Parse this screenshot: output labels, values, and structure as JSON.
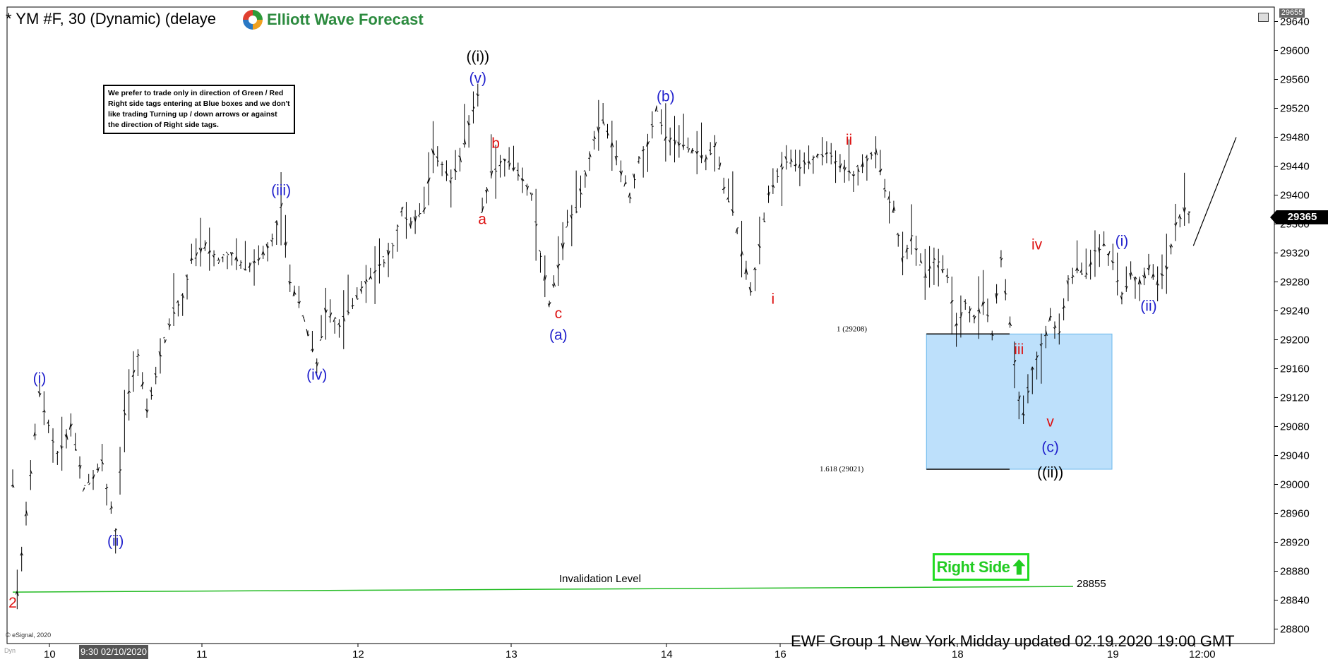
{
  "header": {
    "title": "* YM #F, 30 (Dynamic) (delaye",
    "logo_text": "Elliott Wave Forecast"
  },
  "note": {
    "text": "We prefer to trade only in direction of Green / Red Right side tags entering at Blue boxes and we don't like trading Turning up / down arrows or against the direction of Right side tags."
  },
  "right_side_tag": {
    "label": "Right Side"
  },
  "footer": {
    "text": "EWF Group 1 New York Midday  updated 02.19.2020 19:00 GMT",
    "copyright": "© eSignal, 2020",
    "dyn_label": "Dyn",
    "time_label": "9:30 02/10/2020"
  },
  "price_tag": {
    "current": "29365",
    "top": "29655"
  },
  "chart_data": {
    "type": "bar",
    "ylim": [
      28780,
      29660
    ],
    "y_ticks": [
      28800,
      28840,
      28880,
      28920,
      28960,
      29000,
      29040,
      29080,
      29120,
      29160,
      29200,
      29240,
      29280,
      29320,
      29360,
      29400,
      29440,
      29480,
      29520,
      29560,
      29600,
      29640
    ],
    "x_ticks": [
      "10",
      "11",
      "12",
      "13",
      "14",
      "16",
      "18",
      "19",
      "12:00"
    ],
    "colors": {
      "wave_blue": "#1f1fcc",
      "wave_red": "#dd1111",
      "wave_black": "#000000",
      "box": "#bde0fb",
      "box_border": "#6ab8ec",
      "invalidation": "#22bb22"
    },
    "path": [
      [
        0,
        29000
      ],
      [
        1,
        28850
      ],
      [
        3,
        28960
      ],
      [
        6,
        29125
      ],
      [
        10,
        29040
      ],
      [
        13,
        29080
      ],
      [
        16,
        28995
      ],
      [
        20,
        29030
      ],
      [
        23,
        28935
      ],
      [
        25,
        29100
      ],
      [
        28,
        29180
      ],
      [
        30,
        29100
      ],
      [
        33,
        29180
      ],
      [
        36,
        29240
      ],
      [
        38,
        29260
      ],
      [
        40,
        29310
      ],
      [
        43,
        29330
      ],
      [
        46,
        29310
      ],
      [
        49,
        29320
      ],
      [
        52,
        29300
      ],
      [
        55,
        29310
      ],
      [
        58,
        29340
      ],
      [
        60,
        29385
      ],
      [
        62,
        29280
      ],
      [
        64,
        29250
      ],
      [
        66,
        29210
      ],
      [
        68,
        29165
      ],
      [
        70,
        29240
      ],
      [
        73,
        29220
      ],
      [
        76,
        29250
      ],
      [
        79,
        29280
      ],
      [
        82,
        29300
      ],
      [
        85,
        29330
      ],
      [
        87,
        29380
      ],
      [
        89,
        29360
      ],
      [
        92,
        29380
      ],
      [
        94,
        29460
      ],
      [
        96,
        29440
      ],
      [
        98,
        29420
      ],
      [
        100,
        29450
      ],
      [
        102,
        29500
      ],
      [
        104,
        29540
      ],
      [
        105,
        29380
      ],
      [
        107,
        29430
      ],
      [
        110,
        29450
      ],
      [
        113,
        29430
      ],
      [
        116,
        29400
      ],
      [
        118,
        29320
      ],
      [
        120,
        29250
      ],
      [
        122,
        29300
      ],
      [
        124,
        29360
      ],
      [
        126,
        29380
      ],
      [
        128,
        29430
      ],
      [
        130,
        29480
      ],
      [
        132,
        29500
      ],
      [
        134,
        29470
      ],
      [
        136,
        29430
      ],
      [
        138,
        29400
      ],
      [
        140,
        29450
      ],
      [
        142,
        29470
      ],
      [
        144,
        29520
      ],
      [
        146,
        29480
      ],
      [
        149,
        29470
      ],
      [
        152,
        29460
      ],
      [
        155,
        29450
      ],
      [
        157,
        29470
      ],
      [
        159,
        29410
      ],
      [
        161,
        29380
      ],
      [
        163,
        29320
      ],
      [
        165,
        29270
      ],
      [
        167,
        29330
      ],
      [
        169,
        29400
      ],
      [
        171,
        29430
      ],
      [
        173,
        29450
      ],
      [
        176,
        29440
      ],
      [
        179,
        29450
      ],
      [
        182,
        29460
      ],
      [
        185,
        29440
      ],
      [
        188,
        29430
      ],
      [
        191,
        29450
      ],
      [
        193,
        29460
      ],
      [
        195,
        29410
      ],
      [
        197,
        29380
      ],
      [
        199,
        29310
      ],
      [
        201,
        29340
      ],
      [
        204,
        29290
      ],
      [
        206,
        29310
      ],
      [
        209,
        29290
      ],
      [
        211,
        29220
      ],
      [
        213,
        29250
      ],
      [
        215,
        29230
      ],
      [
        217,
        29250
      ],
      [
        219,
        29210
      ],
      [
        221,
        29310
      ],
      [
        223,
        29220
      ],
      [
        225,
        29120
      ],
      [
        226,
        29100
      ],
      [
        228,
        29160
      ],
      [
        230,
        29190
      ],
      [
        232,
        29230
      ],
      [
        234,
        29210
      ],
      [
        236,
        29280
      ],
      [
        238,
        29300
      ],
      [
        240,
        29290
      ],
      [
        242,
        29320
      ],
      [
        244,
        29330
      ],
      [
        246,
        29310
      ],
      [
        248,
        29260
      ],
      [
        250,
        29290
      ],
      [
        252,
        29280
      ],
      [
        254,
        29300
      ],
      [
        256,
        29280
      ],
      [
        258,
        29300
      ],
      [
        260,
        29360
      ],
      [
        262,
        29380
      ],
      [
        264,
        29365
      ]
    ],
    "projection": [
      [
        264,
        29330
      ],
      [
        272,
        29480
      ]
    ],
    "labels": [
      {
        "text": "2",
        "x": 0,
        "y": 28830,
        "color": "red"
      },
      {
        "text": "(i)",
        "x": 6,
        "y": 29140,
        "color": "blue"
      },
      {
        "text": "(ii)",
        "x": 23,
        "y": 28915,
        "color": "blue"
      },
      {
        "text": "(iii)",
        "x": 60,
        "y": 29400,
        "color": "blue"
      },
      {
        "text": "(iv)",
        "x": 68,
        "y": 29145,
        "color": "blue"
      },
      {
        "text": "((i))",
        "x": 104,
        "y": 29585,
        "color": "black"
      },
      {
        "text": "(v)",
        "x": 104,
        "y": 29555,
        "color": "blue"
      },
      {
        "text": "a",
        "x": 105,
        "y": 29360,
        "color": "red"
      },
      {
        "text": "b",
        "x": 108,
        "y": 29465,
        "color": "red"
      },
      {
        "text": "c",
        "x": 122,
        "y": 29230,
        "color": "red"
      },
      {
        "text": "(a)",
        "x": 122,
        "y": 29200,
        "color": "blue"
      },
      {
        "text": "(b)",
        "x": 146,
        "y": 29530,
        "color": "blue"
      },
      {
        "text": "i",
        "x": 170,
        "y": 29250,
        "color": "red"
      },
      {
        "text": "ii",
        "x": 187,
        "y": 29470,
        "color": "red"
      },
      {
        "text": "iii",
        "x": 225,
        "y": 29180,
        "color": "red"
      },
      {
        "text": "iv",
        "x": 229,
        "y": 29325,
        "color": "red"
      },
      {
        "text": "v",
        "x": 232,
        "y": 29080,
        "color": "red"
      },
      {
        "text": "(c)",
        "x": 232,
        "y": 29045,
        "color": "blue"
      },
      {
        "text": "((ii))",
        "x": 232,
        "y": 29010,
        "color": "black"
      },
      {
        "text": "(i)",
        "x": 248,
        "y": 29330,
        "color": "blue"
      },
      {
        "text": "(ii)",
        "x": 254,
        "y": 29240,
        "color": "blue"
      }
    ],
    "blue_box": {
      "from_x": 198,
      "to_x": 249,
      "top": 29208,
      "bottom": 29021,
      "top_label": "1 (29208)",
      "bottom_label": "1.618 (29021)"
    },
    "invalidation": {
      "label": "Invalidation Level",
      "value": 28855,
      "value_label": "28855"
    },
    "x_range": [
      0,
      275
    ]
  }
}
